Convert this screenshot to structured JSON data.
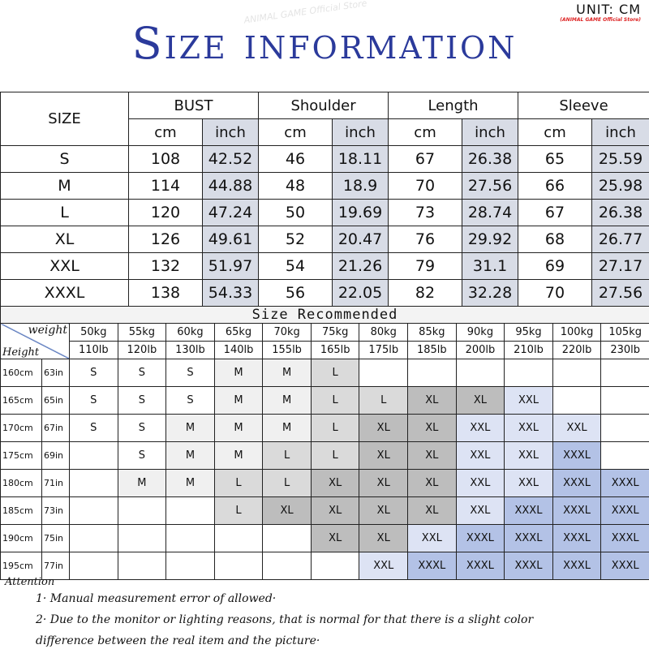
{
  "header": {
    "title": "Size information",
    "unit": "UNIT: CM",
    "store": "(ANIMAL GAME Official Store)",
    "watermark": "ANIMAL GAME Official Store"
  },
  "size_table": {
    "size_label": "SIZE",
    "groups": [
      "BUST",
      "Shoulder",
      "Length",
      "Sleeve"
    ],
    "units": [
      "cm",
      "inch"
    ],
    "rows": [
      {
        "size": "S",
        "values": [
          "108",
          "42.52",
          "46",
          "18.11",
          "67",
          "26.38",
          "65",
          "25.59"
        ]
      },
      {
        "size": "M",
        "values": [
          "114",
          "44.88",
          "48",
          "18.9",
          "70",
          "27.56",
          "66",
          "25.98"
        ]
      },
      {
        "size": "L",
        "values": [
          "120",
          "47.24",
          "50",
          "19.69",
          "73",
          "28.74",
          "67",
          "26.38"
        ]
      },
      {
        "size": "XL",
        "values": [
          "126",
          "49.61",
          "52",
          "20.47",
          "76",
          "29.92",
          "68",
          "26.77"
        ]
      },
      {
        "size": "XXL",
        "values": [
          "132",
          "51.97",
          "54",
          "21.26",
          "79",
          "31.1",
          "69",
          "27.17"
        ]
      },
      {
        "size": "XXXL",
        "values": [
          "138",
          "54.33",
          "56",
          "22.05",
          "82",
          "32.28",
          "70",
          "27.56"
        ]
      }
    ]
  },
  "recommend": {
    "title": "Size Recommended",
    "weight_label": "weight",
    "height_label": "Height",
    "weights_kg": [
      "50kg",
      "55kg",
      "60kg",
      "65kg",
      "70kg",
      "75kg",
      "80kg",
      "85kg",
      "90kg",
      "95kg",
      "100kg",
      "105kg"
    ],
    "weights_lb": [
      "110lb",
      "120lb",
      "130lb",
      "140lb",
      "155lb",
      "165lb",
      "175lb",
      "185lb",
      "200lb",
      "210lb",
      "220lb",
      "230lb"
    ],
    "size_colors": {
      "S": "#ffffff",
      "M": "#f0f0f0",
      "L": "#dadada",
      "XL": "#bdbdbd",
      "XXL": "#dde3f4",
      "XXXL": "#b3c2e6"
    },
    "rows": [
      {
        "cm": "160cm",
        "in": "63in",
        "sizes": [
          "S",
          "S",
          "S",
          "M",
          "M",
          "L",
          "",
          "",
          "",
          "",
          "",
          ""
        ]
      },
      {
        "cm": "165cm",
        "in": "65in",
        "sizes": [
          "S",
          "S",
          "S",
          "M",
          "M",
          "L",
          "L",
          "XL",
          "XL",
          "XXL",
          "",
          ""
        ]
      },
      {
        "cm": "170cm",
        "in": "67in",
        "sizes": [
          "S",
          "S",
          "M",
          "M",
          "M",
          "L",
          "XL",
          "XL",
          "XXL",
          "XXL",
          "XXL",
          ""
        ]
      },
      {
        "cm": "175cm",
        "in": "69in",
        "sizes": [
          "",
          "S",
          "M",
          "M",
          "L",
          "L",
          "XL",
          "XL",
          "XXL",
          "XXL",
          "XXXL",
          ""
        ]
      },
      {
        "cm": "180cm",
        "in": "71in",
        "sizes": [
          "",
          "M",
          "M",
          "L",
          "L",
          "XL",
          "XL",
          "XL",
          "XXL",
          "XXL",
          "XXXL",
          "XXXL"
        ]
      },
      {
        "cm": "185cm",
        "in": "73in",
        "sizes": [
          "",
          "",
          "",
          "L",
          "XL",
          "XL",
          "XL",
          "XL",
          "XXL",
          "XXXL",
          "XXXL",
          "XXXL"
        ]
      },
      {
        "cm": "190cm",
        "in": "75in",
        "sizes": [
          "",
          "",
          "",
          "",
          "",
          "XL",
          "XL",
          "XXL",
          "XXXL",
          "XXXL",
          "XXXL",
          "XXXL"
        ]
      },
      {
        "cm": "195cm",
        "in": "77in",
        "sizes": [
          "",
          "",
          "",
          "",
          "",
          "",
          "XXL",
          "XXXL",
          "XXXL",
          "XXXL",
          "XXXL",
          "XXXL"
        ]
      }
    ]
  },
  "attention": {
    "label": "Attention",
    "notes": [
      "1· Manual measurement error of allowed·",
      "2·  Due to the monitor or lighting reasons, that is normal for that there is a slight color",
      "difference between the real item and the picture·"
    ]
  }
}
